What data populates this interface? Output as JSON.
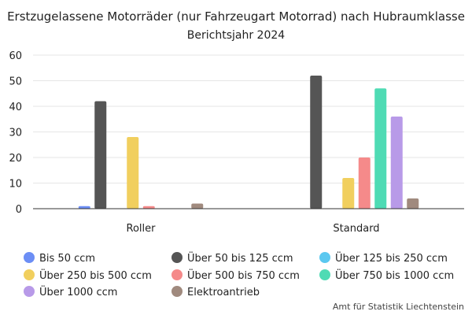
{
  "chart_data": {
    "type": "bar",
    "title": "Erstzugelassene Motorräder (nur Fahrzeugart Motorrad) nach Hubraumklasse",
    "subtitle": "Berichtsjahr 2024",
    "source": "Amt für Statistik Liechtenstein",
    "categories": [
      "Roller",
      "Standard"
    ],
    "ylim": [
      0,
      60
    ],
    "yticks": [
      0,
      10,
      20,
      30,
      40,
      50,
      60
    ],
    "grid": true,
    "legend_position": "bottom",
    "series": [
      {
        "name": "Bis 50 ccm",
        "color": "#6c8ef5",
        "values": [
          1,
          0
        ]
      },
      {
        "name": "Über 50 bis 125 ccm",
        "color": "#555555",
        "values": [
          42,
          52
        ]
      },
      {
        "name": "Über 125 bis 250 ccm",
        "color": "#5bc8f0",
        "values": [
          0,
          0
        ]
      },
      {
        "name": "Über 250 bis 500 ccm",
        "color": "#f1cf5e",
        "values": [
          28,
          12
        ]
      },
      {
        "name": "Über 500 bis 750 ccm",
        "color": "#f58a8a",
        "values": [
          1,
          20
        ]
      },
      {
        "name": "Über 750 bis 1000 ccm",
        "color": "#4fdbb4",
        "values": [
          0,
          47
        ]
      },
      {
        "name": "Über 1000 ccm",
        "color": "#b89ae8",
        "values": [
          0,
          36
        ]
      },
      {
        "name": "Elektroantrieb",
        "color": "#a08a7e",
        "values": [
          2,
          4
        ]
      }
    ]
  }
}
